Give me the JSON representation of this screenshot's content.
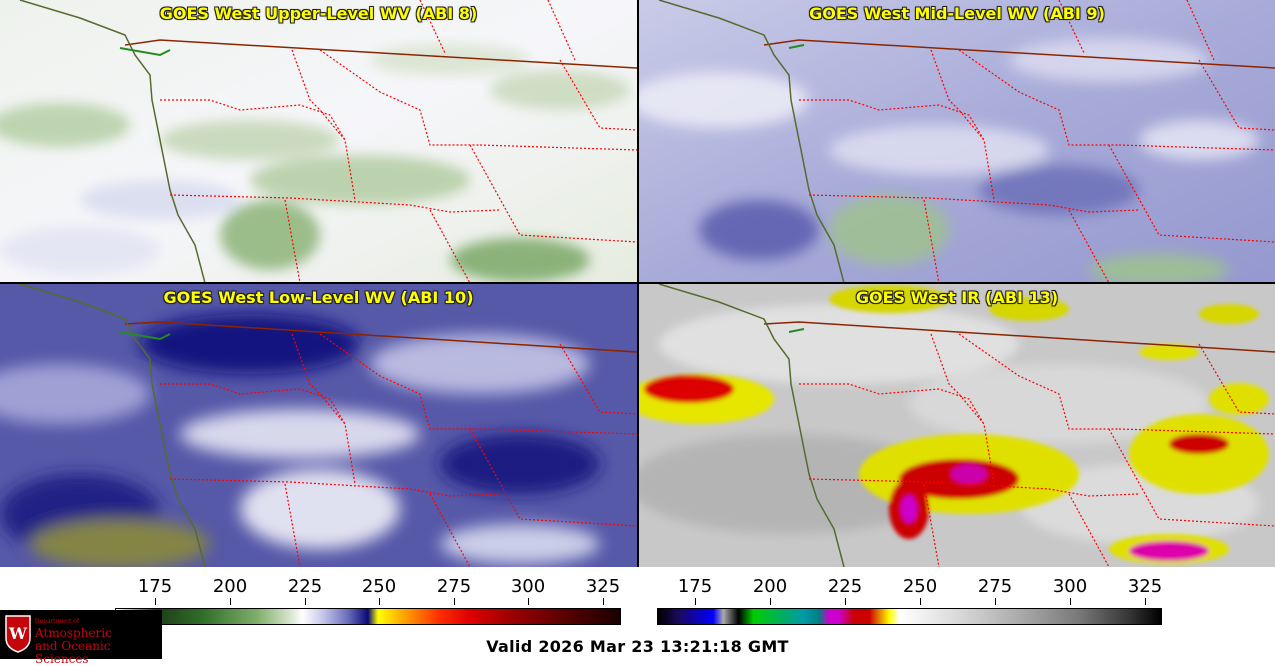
{
  "panels": {
    "upper_wv": {
      "title": "GOES West Upper-Level WV (ABI 8)"
    },
    "mid_wv": {
      "title": "GOES West Mid-Level WV (ABI 9)"
    },
    "low_wv": {
      "title": "GOES West Low-Level WV (ABI 10)"
    },
    "ir": {
      "title": "GOES West IR (ABI 13)"
    }
  },
  "colorbars": {
    "wv": {
      "ticks": [
        "175",
        "200",
        "225",
        "250",
        "275",
        "300",
        "325"
      ]
    },
    "ir": {
      "ticks": [
        "175",
        "200",
        "225",
        "250",
        "275",
        "300",
        "325"
      ]
    }
  },
  "logo": {
    "line_small": "Department of",
    "line1": "Atmospheric",
    "line2": "and Oceanic Sciences",
    "emblem_letter": "W"
  },
  "footer": {
    "valid": "Valid 2026 Mar 23 13:21:18 GMT"
  },
  "colors": {
    "title_text": "#ffff00",
    "state_border": "#ff0000",
    "national_border": "#8b2500",
    "coastline": "#556b2f",
    "logo_red": "#c5050c"
  }
}
